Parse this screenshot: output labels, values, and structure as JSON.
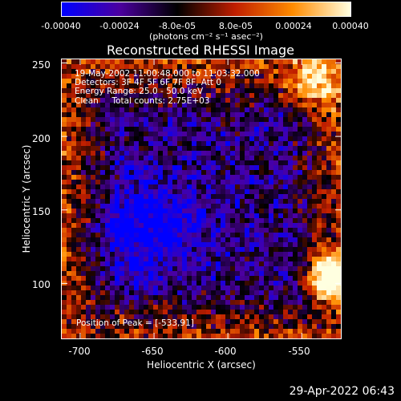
{
  "colorbar": {
    "ticks": [
      "-0.00040",
      "-0.00024",
      "-8.0e-05",
      "8.0e-05",
      "0.00024",
      "0.00040"
    ],
    "tick_values": [
      -0.0004,
      -0.00024,
      -8e-05,
      8e-05,
      0.00024,
      0.0004
    ],
    "range": [
      -0.0004,
      0.0004
    ],
    "units": "(photons cm⁻² s⁻¹ asec⁻²)",
    "colors": [
      "#0000ff",
      "#4c00a0",
      "#000000",
      "#c01e00",
      "#ff8c00",
      "#ffffe0"
    ]
  },
  "plot": {
    "title": "Reconstructed RHESSI Image",
    "xlabel": "Heliocentric X (arcsec)",
    "ylabel": "Heliocentric Y (arcsec)",
    "xticks": [
      "-700",
      "-650",
      "-600",
      "-550"
    ],
    "xtick_values": [
      -700,
      -650,
      -600,
      -550
    ],
    "yticks": [
      "100",
      "150",
      "200",
      "250"
    ],
    "ytick_values": [
      100,
      150,
      200,
      250
    ],
    "xlim": [
      -713,
      -523
    ],
    "ylim": [
      62,
      253
    ]
  },
  "annotations": {
    "time": "19-May-2002 11:00:48.000 to 11:03:32.000",
    "detectors": "Detectors: 3F 4F 5F 6F 7F 8F, Att 0",
    "energy": "Energy Range: 25.0 - 50.0 keV",
    "clean": "Clean     Total counts: 2.75E+03",
    "peak": "Position of Peak = [-533,91]"
  },
  "timestamp": "29-Apr-2022 06:43"
}
